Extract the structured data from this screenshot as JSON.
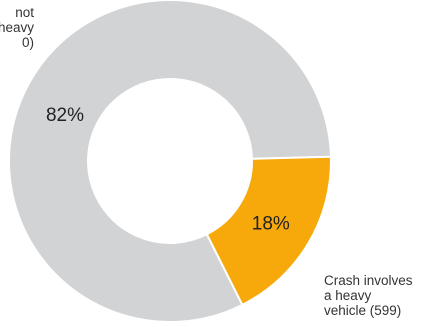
{
  "chart_data": {
    "type": "pie",
    "variant": "donut",
    "title": "",
    "slices": [
      {
        "label_lines": [
          "not",
          "heavy",
          "0)"
        ],
        "percent_label": "82%",
        "value": 82,
        "color": "#d2d3d5"
      },
      {
        "label_lines": [
          "Crash involves",
          "a heavy",
          "vehicle (599)"
        ],
        "percent_label": "18%",
        "value": 18,
        "color": "#f7a90b"
      }
    ]
  }
}
